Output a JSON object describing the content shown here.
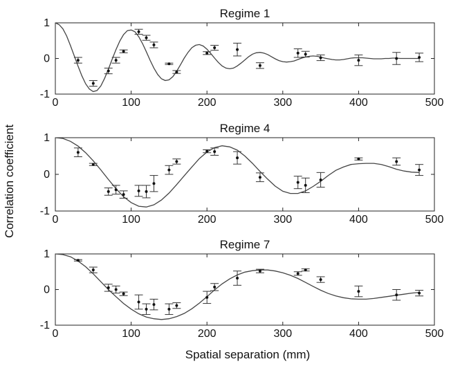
{
  "chart_data": [
    {
      "type": "line",
      "title": "Regime 1",
      "xlim": [
        0,
        500
      ],
      "ylim": [
        -1,
        1
      ],
      "xticks": [
        0,
        100,
        200,
        300,
        400,
        500
      ],
      "yticks": [
        -1,
        0,
        1
      ],
      "points": [
        {
          "x": 30,
          "y": -0.05,
          "err": 0.08
        },
        {
          "x": 50,
          "y": -0.7,
          "err": 0.08
        },
        {
          "x": 70,
          "y": -0.35,
          "err": 0.08
        },
        {
          "x": 80,
          "y": -0.05,
          "err": 0.08
        },
        {
          "x": 90,
          "y": 0.2,
          "err": 0.04
        },
        {
          "x": 110,
          "y": 0.75,
          "err": 0.07
        },
        {
          "x": 120,
          "y": 0.58,
          "err": 0.07
        },
        {
          "x": 130,
          "y": 0.38,
          "err": 0.08
        },
        {
          "x": 150,
          "y": -0.15,
          "err": 0.02
        },
        {
          "x": 160,
          "y": -0.38,
          "err": 0.04
        },
        {
          "x": 200,
          "y": 0.15,
          "err": 0.04
        },
        {
          "x": 210,
          "y": 0.3,
          "err": 0.07
        },
        {
          "x": 240,
          "y": 0.25,
          "err": 0.18
        },
        {
          "x": 270,
          "y": -0.2,
          "err": 0.08
        },
        {
          "x": 320,
          "y": 0.15,
          "err": 0.12
        },
        {
          "x": 330,
          "y": 0.12,
          "err": 0.08
        },
        {
          "x": 350,
          "y": 0.02,
          "err": 0.08
        },
        {
          "x": 400,
          "y": -0.05,
          "err": 0.15
        },
        {
          "x": 450,
          "y": 0.0,
          "err": 0.17
        },
        {
          "x": 480,
          "y": 0.03,
          "err": 0.12
        }
      ],
      "curve": {
        "x": [
          0,
          5,
          10,
          15,
          20,
          25,
          30,
          35,
          40,
          45,
          50,
          55,
          60,
          65,
          70,
          75,
          80,
          85,
          90,
          95,
          100,
          105,
          110,
          115,
          120,
          125,
          130,
          135,
          140,
          145,
          150,
          155,
          160,
          165,
          170,
          175,
          180,
          185,
          190,
          195,
          200,
          205,
          210,
          215,
          220,
          225,
          230,
          235,
          240,
          245,
          250,
          255,
          260,
          265,
          270,
          275,
          280,
          285,
          290,
          295,
          300,
          305,
          310,
          315,
          320,
          325,
          330,
          335,
          340,
          345,
          350,
          355,
          360,
          365,
          370,
          375,
          380,
          385,
          390,
          395,
          400,
          405,
          410,
          415,
          420,
          425,
          430,
          435,
          440,
          445,
          450,
          455,
          460,
          465,
          470,
          475,
          480
        ],
        "y": [
          1.0,
          0.95,
          0.83,
          0.63,
          0.36,
          0.07,
          -0.22,
          -0.49,
          -0.71,
          -0.86,
          -0.93,
          -0.9,
          -0.77,
          -0.56,
          -0.3,
          -0.02,
          0.25,
          0.49,
          0.67,
          0.78,
          0.8,
          0.75,
          0.61,
          0.42,
          0.19,
          -0.05,
          -0.27,
          -0.45,
          -0.57,
          -0.62,
          -0.6,
          -0.51,
          -0.36,
          -0.18,
          0.01,
          0.17,
          0.3,
          0.37,
          0.39,
          0.35,
          0.26,
          0.14,
          0.01,
          -0.11,
          -0.21,
          -0.27,
          -0.29,
          -0.27,
          -0.21,
          -0.13,
          -0.04,
          0.05,
          0.12,
          0.16,
          0.17,
          0.15,
          0.11,
          0.05,
          -0.01,
          -0.06,
          -0.09,
          -0.1,
          -0.09,
          -0.07,
          -0.03,
          0.01,
          0.04,
          0.06,
          0.07,
          0.06,
          0.04,
          0.01,
          -0.01,
          -0.03,
          -0.04,
          -0.04,
          -0.03,
          -0.01,
          0.01,
          0.02,
          0.02,
          0.02,
          0.01,
          0.0,
          -0.01,
          -0.01,
          -0.01,
          0.0,
          0.0,
          0.01,
          0.01,
          0.0,
          0.0,
          0.0,
          0.0,
          0.0,
          0.0
        ]
      }
    },
    {
      "type": "line",
      "title": "Regime 4",
      "xlim": [
        0,
        500
      ],
      "ylim": [
        -1,
        1
      ],
      "xticks": [
        0,
        100,
        200,
        300,
        400,
        500
      ],
      "yticks": [
        -1,
        0,
        1
      ],
      "points": [
        {
          "x": 30,
          "y": 0.6,
          "err": 0.12
        },
        {
          "x": 50,
          "y": 0.27,
          "err": 0.03
        },
        {
          "x": 70,
          "y": -0.47,
          "err": 0.1
        },
        {
          "x": 80,
          "y": -0.42,
          "err": 0.12
        },
        {
          "x": 90,
          "y": -0.55,
          "err": 0.1
        },
        {
          "x": 110,
          "y": -0.45,
          "err": 0.15
        },
        {
          "x": 120,
          "y": -0.47,
          "err": 0.17
        },
        {
          "x": 130,
          "y": -0.25,
          "err": 0.22
        },
        {
          "x": 150,
          "y": 0.12,
          "err": 0.12
        },
        {
          "x": 160,
          "y": 0.35,
          "err": 0.07
        },
        {
          "x": 200,
          "y": 0.63,
          "err": 0.04
        },
        {
          "x": 210,
          "y": 0.62,
          "err": 0.1
        },
        {
          "x": 240,
          "y": 0.45,
          "err": 0.17
        },
        {
          "x": 270,
          "y": -0.08,
          "err": 0.12
        },
        {
          "x": 320,
          "y": -0.22,
          "err": 0.17
        },
        {
          "x": 330,
          "y": -0.3,
          "err": 0.2
        },
        {
          "x": 350,
          "y": -0.15,
          "err": 0.2
        },
        {
          "x": 400,
          "y": 0.42,
          "err": 0.03
        },
        {
          "x": 450,
          "y": 0.35,
          "err": 0.1
        },
        {
          "x": 480,
          "y": 0.12,
          "err": 0.15
        }
      ],
      "curve": {
        "x": [
          0,
          10,
          20,
          30,
          40,
          50,
          60,
          70,
          80,
          90,
          100,
          110,
          120,
          130,
          140,
          150,
          160,
          170,
          180,
          190,
          200,
          210,
          220,
          230,
          240,
          250,
          260,
          270,
          280,
          290,
          300,
          310,
          320,
          330,
          340,
          350,
          360,
          370,
          380,
          390,
          400,
          410,
          420,
          430,
          440,
          450,
          460,
          470,
          480
        ],
        "y": [
          1.0,
          0.98,
          0.9,
          0.77,
          0.59,
          0.37,
          0.12,
          -0.14,
          -0.39,
          -0.61,
          -0.77,
          -0.87,
          -0.89,
          -0.83,
          -0.7,
          -0.51,
          -0.28,
          -0.04,
          0.2,
          0.43,
          0.61,
          0.73,
          0.78,
          0.75,
          0.66,
          0.5,
          0.3,
          0.08,
          -0.13,
          -0.32,
          -0.46,
          -0.52,
          -0.52,
          -0.45,
          -0.33,
          -0.19,
          -0.03,
          0.11,
          0.2,
          0.27,
          0.29,
          0.3,
          0.3,
          0.27,
          0.21,
          0.14,
          0.09,
          0.06,
          0.05
        ]
      }
    },
    {
      "type": "line",
      "title": "Regime 7",
      "xlim": [
        0,
        500
      ],
      "ylim": [
        -1,
        1
      ],
      "xticks": [
        0,
        100,
        200,
        300,
        400,
        500
      ],
      "yticks": [
        -1,
        0,
        1
      ],
      "points": [
        {
          "x": 30,
          "y": 0.82,
          "err": 0.02
        },
        {
          "x": 50,
          "y": 0.55,
          "err": 0.08
        },
        {
          "x": 70,
          "y": 0.05,
          "err": 0.1
        },
        {
          "x": 80,
          "y": 0.0,
          "err": 0.1
        },
        {
          "x": 90,
          "y": -0.12,
          "err": 0.05
        },
        {
          "x": 110,
          "y": -0.35,
          "err": 0.2
        },
        {
          "x": 120,
          "y": -0.55,
          "err": 0.15
        },
        {
          "x": 130,
          "y": -0.42,
          "err": 0.15
        },
        {
          "x": 150,
          "y": -0.55,
          "err": 0.15
        },
        {
          "x": 160,
          "y": -0.45,
          "err": 0.08
        },
        {
          "x": 200,
          "y": -0.22,
          "err": 0.17
        },
        {
          "x": 210,
          "y": 0.07,
          "err": 0.1
        },
        {
          "x": 240,
          "y": 0.32,
          "err": 0.2
        },
        {
          "x": 270,
          "y": 0.52,
          "err": 0.05
        },
        {
          "x": 320,
          "y": 0.45,
          "err": 0.05
        },
        {
          "x": 330,
          "y": 0.55,
          "err": 0.03
        },
        {
          "x": 350,
          "y": 0.28,
          "err": 0.08
        },
        {
          "x": 400,
          "y": -0.05,
          "err": 0.15
        },
        {
          "x": 450,
          "y": -0.15,
          "err": 0.15
        },
        {
          "x": 480,
          "y": -0.1,
          "err": 0.08
        }
      ],
      "curve": {
        "x": [
          0,
          10,
          20,
          30,
          40,
          50,
          60,
          70,
          80,
          90,
          100,
          110,
          120,
          130,
          140,
          150,
          160,
          170,
          180,
          190,
          200,
          210,
          220,
          230,
          240,
          250,
          260,
          270,
          280,
          290,
          300,
          310,
          320,
          330,
          340,
          350,
          360,
          370,
          380,
          390,
          400,
          410,
          420,
          430,
          440,
          450,
          460,
          470,
          480
        ],
        "y": [
          1.0,
          0.98,
          0.92,
          0.8,
          0.64,
          0.44,
          0.22,
          0.0,
          -0.2,
          -0.39,
          -0.55,
          -0.68,
          -0.77,
          -0.82,
          -0.84,
          -0.82,
          -0.76,
          -0.67,
          -0.54,
          -0.38,
          -0.2,
          -0.01,
          0.16,
          0.3,
          0.41,
          0.49,
          0.53,
          0.55,
          0.55,
          0.52,
          0.47,
          0.4,
          0.31,
          0.2,
          0.09,
          -0.02,
          -0.11,
          -0.18,
          -0.23,
          -0.26,
          -0.27,
          -0.27,
          -0.25,
          -0.22,
          -0.19,
          -0.16,
          -0.13,
          -0.1,
          -0.08
        ]
      }
    }
  ],
  "ylabel": "Correlation coefficient",
  "xlabel": "Spatial separation (mm)"
}
